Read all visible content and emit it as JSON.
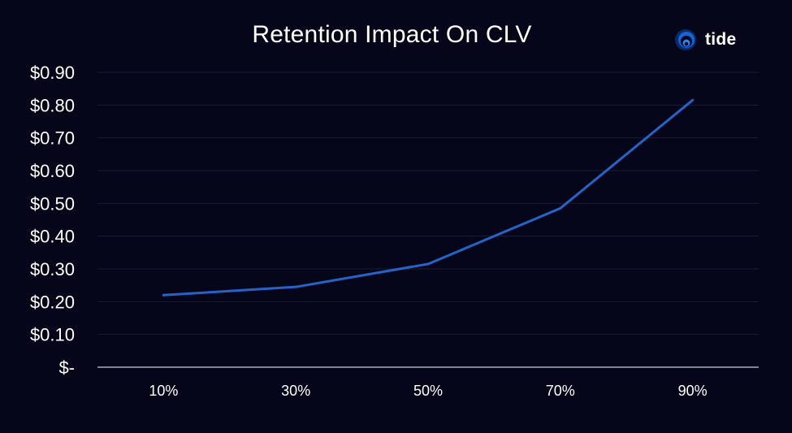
{
  "brand": {
    "name": "tide",
    "logo_icon": "tide-logo-icon",
    "accent_color": "#1f8bff"
  },
  "chart_data": {
    "type": "line",
    "title": "Retention Impact On CLV",
    "xlabel": "",
    "ylabel": "",
    "categories": [
      "10%",
      "30%",
      "50%",
      "70%",
      "90%"
    ],
    "series": [
      {
        "values": [
          0.22,
          0.245,
          0.315,
          0.485,
          0.815
        ],
        "color": "#2563c7"
      }
    ],
    "ylim": [
      0,
      0.9
    ],
    "yticks": [
      0,
      0.1,
      0.2,
      0.3,
      0.4,
      0.5,
      0.6,
      0.7,
      0.8,
      0.9
    ],
    "ytick_labels": [
      "$-",
      "$0.10",
      "$0.20",
      "$0.30",
      "$0.40",
      "$0.50",
      "$0.60",
      "$0.70",
      "$0.80",
      "$0.90"
    ],
    "grid": true,
    "legend": "none",
    "background_color": "#05061a",
    "gridline_color": "#1a1c33",
    "axis_color": "#ffffff"
  }
}
